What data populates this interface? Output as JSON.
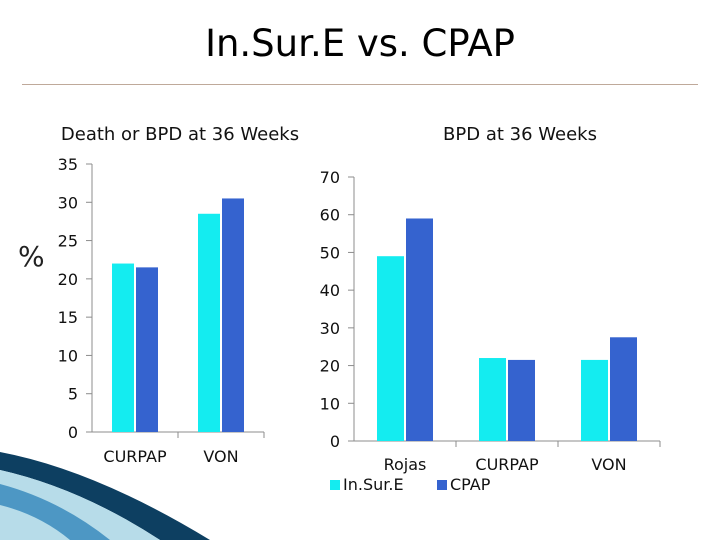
{
  "slide": {
    "title": "In.Sur.E vs. CPAP",
    "y_unit": "%"
  },
  "colors": {
    "insure": "#14ecf0",
    "cpap": "#3563cf",
    "axis": "#8c8c8c",
    "text": "#111111"
  },
  "chart_data": [
    {
      "type": "bar",
      "title": "Death or BPD at 36 Weeks",
      "categories": [
        "CURPAP",
        "VON"
      ],
      "series": [
        {
          "name": "In.Sur.E",
          "values": [
            22,
            28.5
          ]
        },
        {
          "name": "CPAP",
          "values": [
            21.5,
            30.5
          ]
        }
      ],
      "ylim": [
        0,
        35
      ],
      "yticks": [
        "0",
        "5",
        "10",
        "15",
        "20",
        "25",
        "30",
        "35"
      ],
      "ylabel": "%",
      "grid": false
    },
    {
      "type": "bar",
      "title": "BPD at 36 Weeks",
      "categories": [
        "Rojas",
        "CURPAP",
        "VON"
      ],
      "series": [
        {
          "name": "In.Sur.E",
          "values": [
            49,
            22,
            21.5
          ]
        },
        {
          "name": "CPAP",
          "values": [
            59,
            21.5,
            27.5
          ]
        }
      ],
      "ylim": [
        0,
        70
      ],
      "yticks": [
        "0",
        "10",
        "20",
        "30",
        "40",
        "50",
        "60",
        "70"
      ],
      "grid": false,
      "legend": [
        "In.Sur.E",
        "CPAP"
      ],
      "legend_position": "bottom"
    }
  ]
}
